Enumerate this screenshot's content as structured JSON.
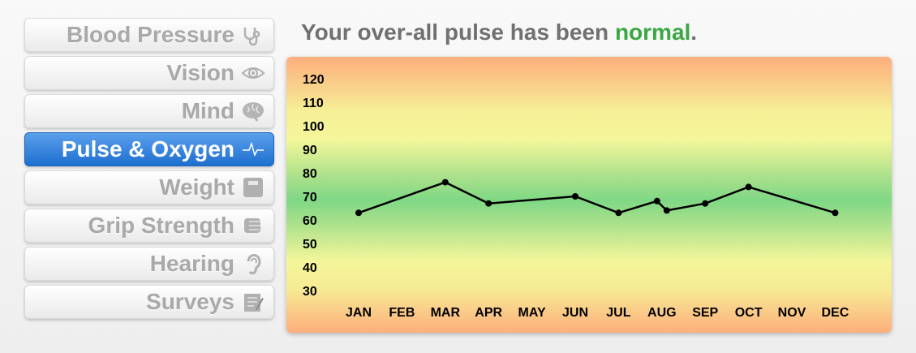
{
  "sidebar": {
    "items": [
      {
        "label": "Blood Pressure",
        "icon": "stethoscope-icon",
        "active": false
      },
      {
        "label": "Vision",
        "icon": "eye-icon",
        "active": false
      },
      {
        "label": "Mind",
        "icon": "brain-icon",
        "active": false
      },
      {
        "label": "Pulse & Oxygen",
        "icon": "pulse-icon",
        "active": true
      },
      {
        "label": "Weight",
        "icon": "scale-icon",
        "active": false
      },
      {
        "label": "Grip Strength",
        "icon": "fist-icon",
        "active": false
      },
      {
        "label": "Hearing",
        "icon": "ear-icon",
        "active": false
      },
      {
        "label": "Surveys",
        "icon": "notepad-icon",
        "active": false
      }
    ]
  },
  "headline": {
    "prefix": "Your over-all pulse has been ",
    "status": "normal",
    "suffix": ".",
    "status_color": "#3aa842"
  },
  "chart_data": {
    "type": "line",
    "title": "",
    "xlabel": "",
    "ylabel": "",
    "categories": [
      "JAN",
      "FEB",
      "MAR",
      "APR",
      "MAY",
      "JUN",
      "JUL",
      "AUG",
      "SEP",
      "OCT",
      "NOV",
      "DEC"
    ],
    "yticks": [
      30,
      40,
      50,
      60,
      70,
      80,
      90,
      100,
      110,
      120
    ],
    "ylim": [
      30,
      120
    ],
    "grid": false,
    "series": [
      {
        "points": [
          {
            "x": "JAN",
            "y": 63
          },
          {
            "x": "MAR",
            "y": 76
          },
          {
            "x": "APR",
            "y": 67
          },
          {
            "x": "JUN",
            "y": 70
          },
          {
            "x": "JUL",
            "y": 63
          },
          {
            "x": "AUG",
            "y": 68
          },
          {
            "x": "AUG",
            "y": 64
          },
          {
            "x": "SEP",
            "y": 67
          },
          {
            "x": "OCT",
            "y": 74
          },
          {
            "x": "DEC",
            "y": 63
          }
        ],
        "color": "#000000"
      }
    ]
  }
}
